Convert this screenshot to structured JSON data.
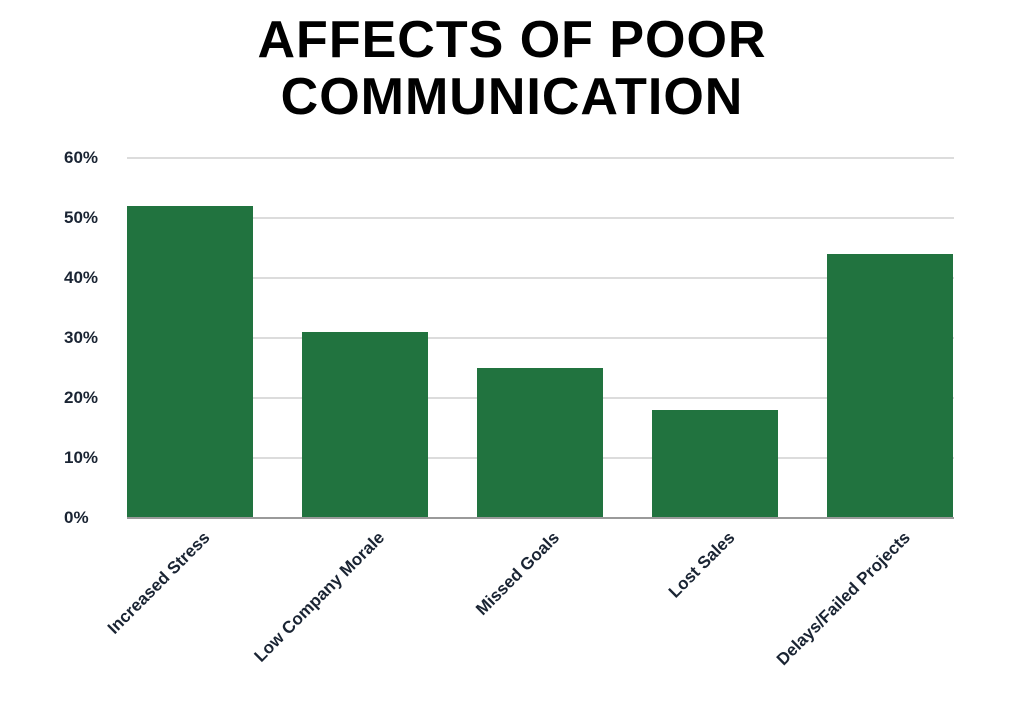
{
  "chart_data": {
    "type": "bar",
    "title": "AFFECTS OF POOR COMMUNICATION",
    "title_lines": [
      "AFFECTS OF POOR",
      "COMMUNICATION"
    ],
    "categories": [
      "Increased Stress",
      "Low Company Morale",
      "Missed Goals",
      "Lost Sales",
      "Delays/Failed Projects"
    ],
    "values": [
      52,
      31,
      25,
      18,
      44
    ],
    "value_unit": "%",
    "xlabel": "",
    "ylabel": "",
    "ylim": [
      0,
      60
    ],
    "yticks": [
      "0%",
      "10%",
      "20%",
      "30%",
      "40%",
      "50%",
      "60%"
    ],
    "grid": true,
    "legend": "none",
    "bar_color": "#21733f"
  }
}
